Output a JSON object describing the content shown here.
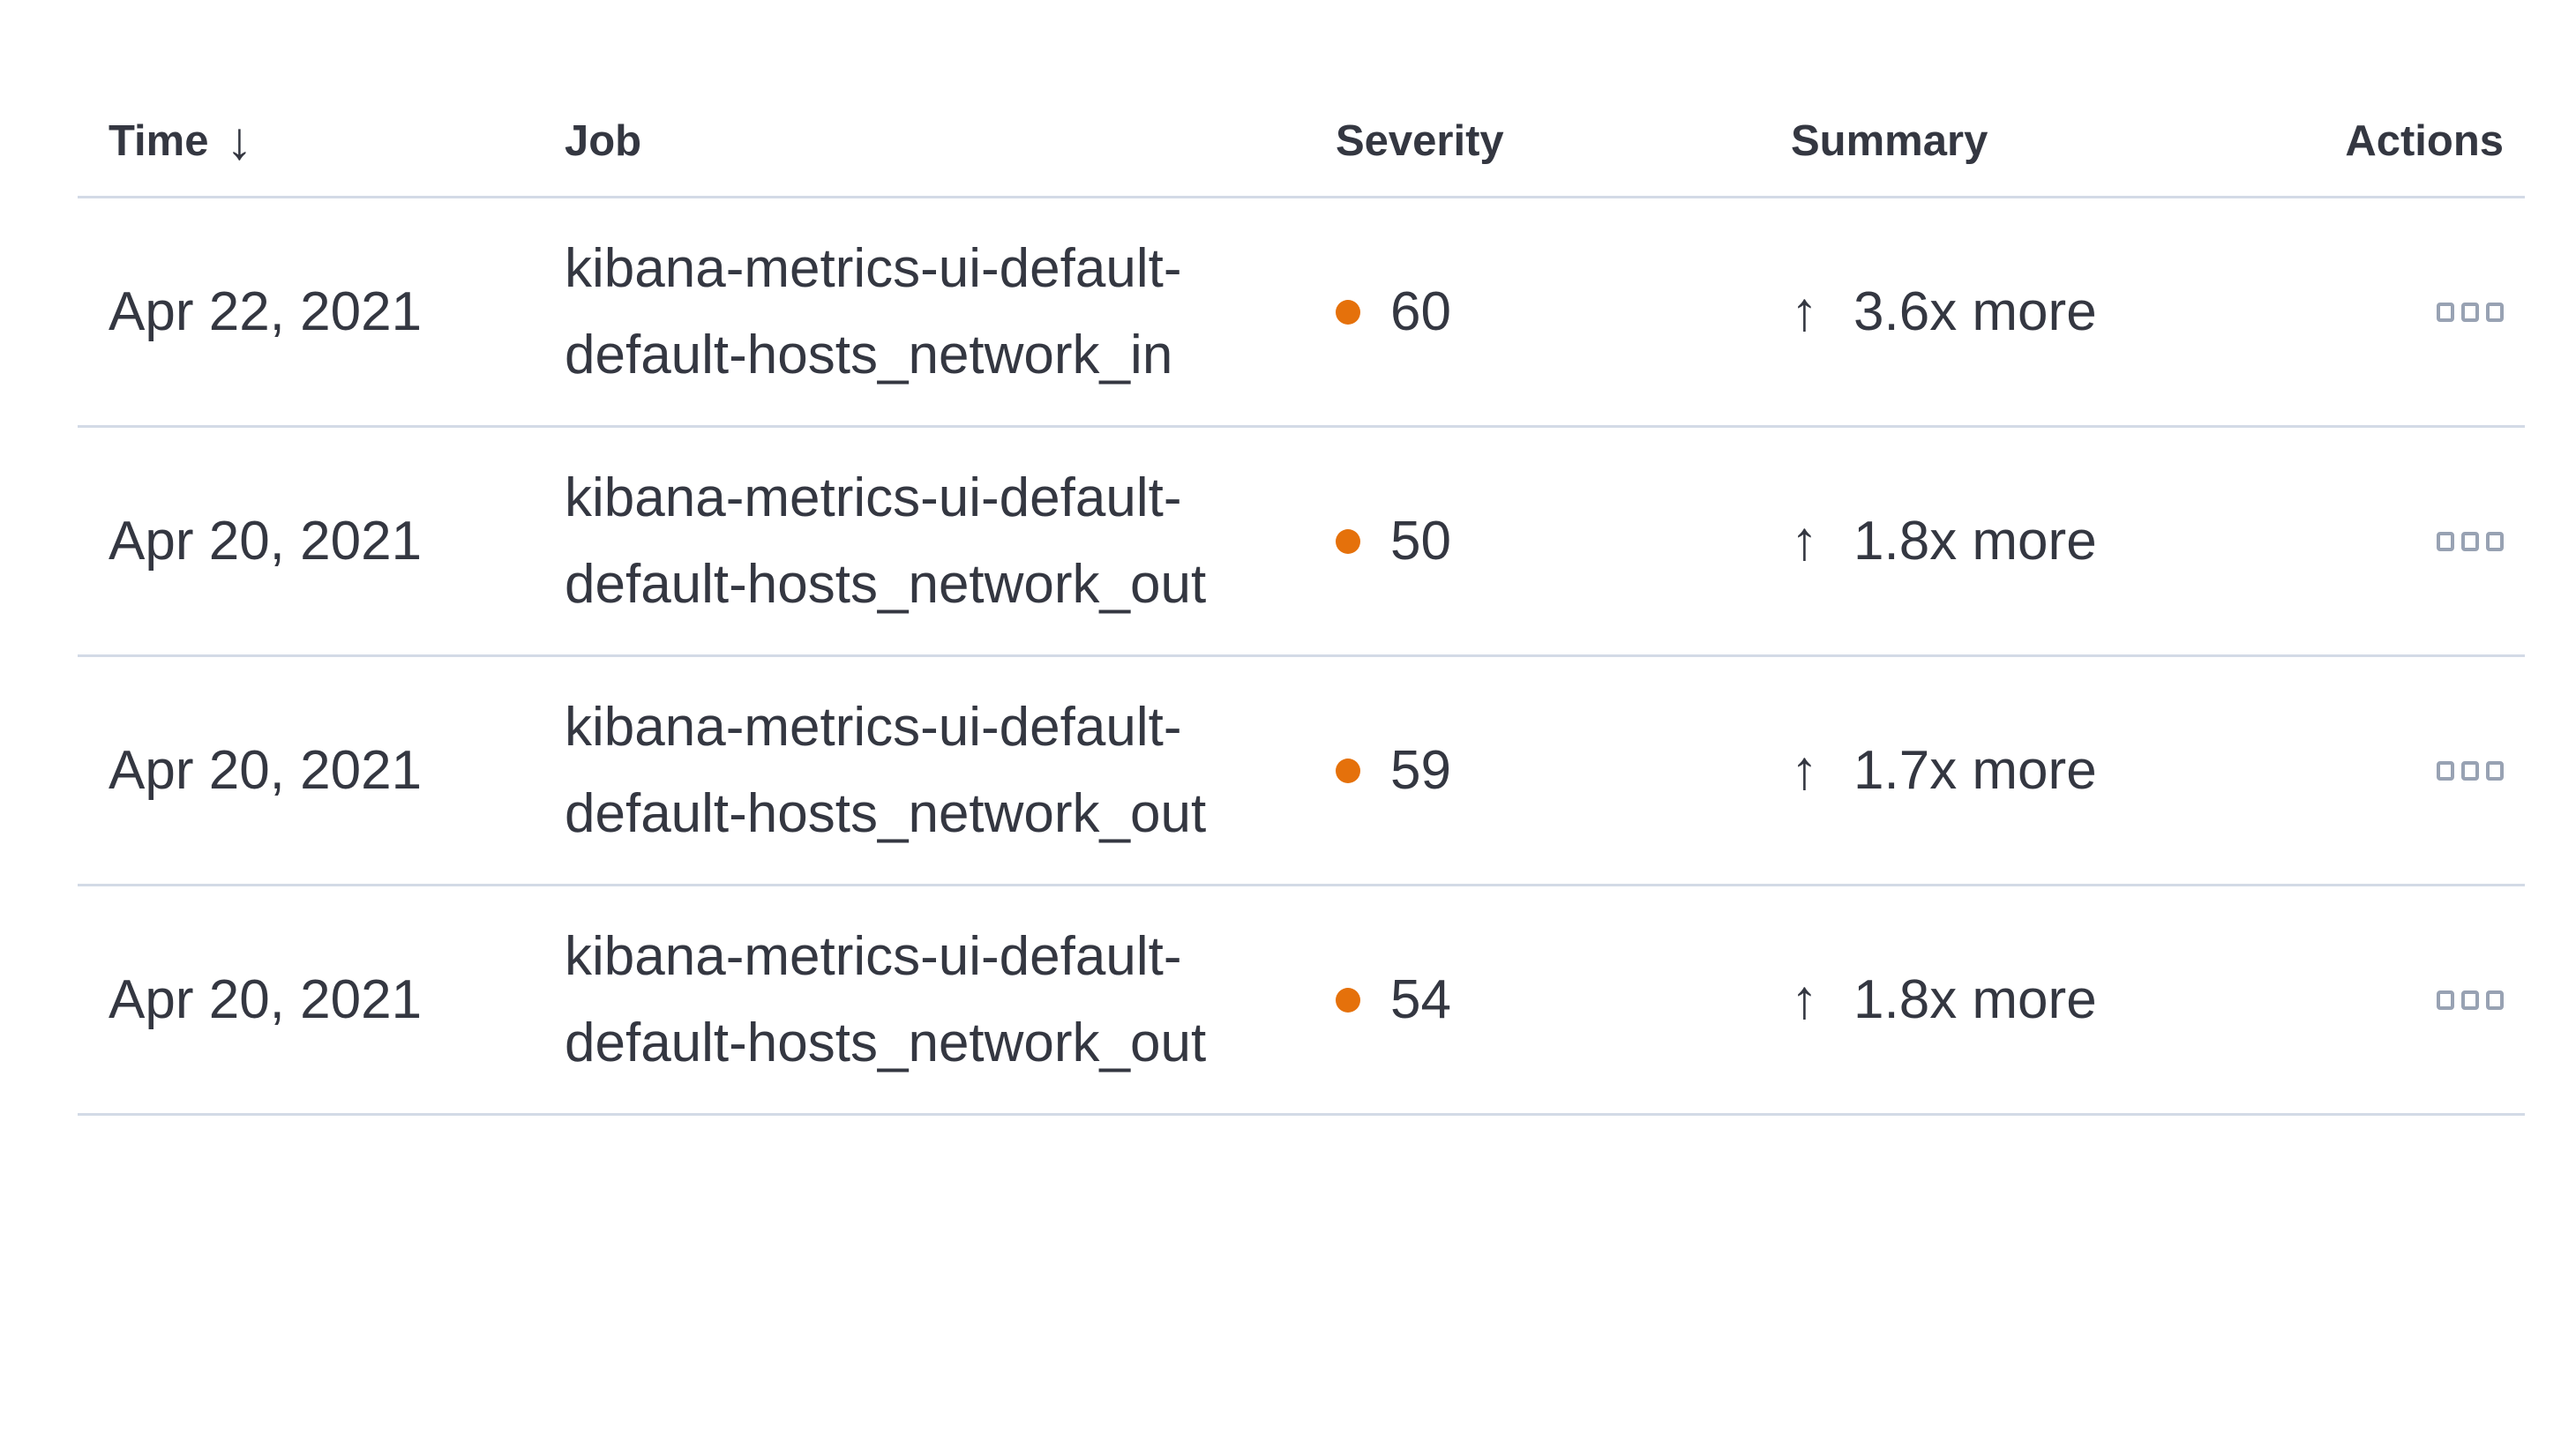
{
  "page": {
    "background": "#ffffff",
    "description": "Anomaly detection results table (Kibana ML)"
  },
  "icons": {
    "sort_glyph": "↓",
    "sort_icon_name": "sort-descending-arrow",
    "up_glyph": "↑",
    "up_icon_name": "arrow-up",
    "actions_icon_name": "boxes-horizontal"
  },
  "colors": {
    "text": "#343741",
    "divider": "#d3dae6",
    "severity_dot": "#e5710b",
    "actions_icon": "#98a2b3"
  },
  "table": {
    "columns": [
      {
        "key": "time",
        "label": "Time",
        "sorted": "descending"
      },
      {
        "key": "job",
        "label": "Job"
      },
      {
        "key": "severity",
        "label": "Severity"
      },
      {
        "key": "summary",
        "label": "Summary"
      },
      {
        "key": "actions",
        "label": "Actions"
      }
    ],
    "rows": [
      {
        "time": "Apr 22, 2021",
        "job": "kibana-metrics-ui-default-default-hosts_network_in",
        "severity": "60",
        "summary": "3.6x more"
      },
      {
        "time": "Apr 20, 2021",
        "job": "kibana-metrics-ui-default-default-hosts_network_out",
        "severity": "50",
        "summary": "1.8x more"
      },
      {
        "time": "Apr 20, 2021",
        "job": "kibana-metrics-ui-default-default-hosts_network_out",
        "severity": "59",
        "summary": "1.7x more"
      },
      {
        "time": "Apr 20, 2021",
        "job": "kibana-metrics-ui-default-default-hosts_network_out",
        "severity": "54",
        "summary": "1.8x more"
      }
    ]
  }
}
